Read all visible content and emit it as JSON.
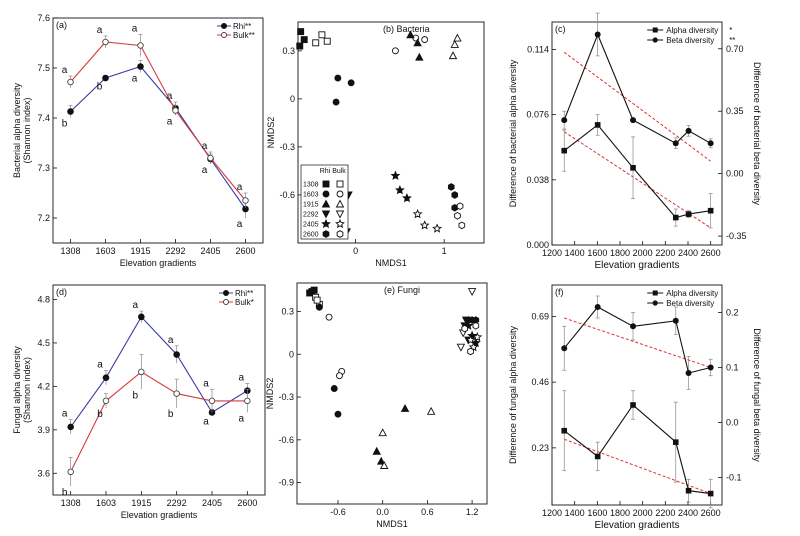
{
  "chart_data": [
    {
      "id": "a",
      "type": "line",
      "panel_label": "(a)",
      "xlabel": "Elevation gradients",
      "ylabel": "Bacterial alpha diversity",
      "ylabel2": "(Shannon index)",
      "categories": [
        "1308",
        "1603",
        "1915",
        "2292",
        "2405",
        "2600"
      ],
      "ylim": [
        7.15,
        7.6
      ],
      "yticks": [
        7.2,
        7.3,
        7.4,
        7.5,
        7.6
      ],
      "legend_position": "top-right",
      "series": [
        {
          "name": "Rhi**",
          "color": "#3a3aa6",
          "marker": "filled-circle",
          "values": [
            7.413,
            7.48,
            7.503,
            7.42,
            7.318,
            7.218
          ],
          "errors": [
            0.012,
            0.005,
            0.012,
            0.012,
            0.01,
            0.018
          ],
          "letters": [
            "b",
            "b",
            "a",
            "a",
            "a",
            "a"
          ]
        },
        {
          "name": "Bulk**",
          "color": "#d63a3a",
          "marker": "open-circle",
          "values": [
            7.472,
            7.552,
            7.545,
            7.415,
            7.32,
            7.235
          ],
          "errors": [
            0.012,
            0.012,
            0.022,
            0.01,
            0.012,
            0.015
          ],
          "letters": [
            "a",
            "a",
            "a",
            "a",
            "a",
            "a"
          ]
        }
      ]
    },
    {
      "id": "b",
      "type": "scatter",
      "panel_label": "(b) Bacteria",
      "xlabel": "NMDS1",
      "ylabel": "NMDS2",
      "xlim": [
        -0.65,
        1.45
      ],
      "ylim": [
        -0.9,
        0.48
      ],
      "xticks": [
        0,
        1
      ],
      "yticks": [
        0.3,
        0,
        -0.3,
        -0.6
      ],
      "legend_title_rhi": "Rhi",
      "legend_title_bulk": "Bulk",
      "legend_position": "bottom-left",
      "groups": [
        {
          "name": "1308",
          "shape": "square",
          "rhi": [
            [
              -0.62,
              0.42
            ],
            [
              -0.63,
              0.33
            ],
            [
              -0.58,
              0.37
            ]
          ],
          "bulk": [
            [
              -0.38,
              0.4
            ],
            [
              -0.32,
              0.36
            ],
            [
              -0.45,
              0.35
            ]
          ]
        },
        {
          "name": "1603",
          "shape": "circle",
          "rhi": [
            [
              -0.2,
              0.13
            ],
            [
              -0.22,
              -0.02
            ],
            [
              -0.05,
              0.1
            ]
          ],
          "bulk": [
            [
              0.45,
              0.3
            ],
            [
              0.68,
              0.38
            ],
            [
              0.78,
              0.37
            ]
          ]
        },
        {
          "name": "1915",
          "shape": "triangle-up",
          "rhi": [
            [
              0.7,
              0.35
            ],
            [
              0.72,
              0.26
            ],
            [
              0.62,
              0.4
            ]
          ],
          "bulk": [
            [
              1.12,
              0.34
            ],
            [
              1.15,
              0.38
            ],
            [
              1.1,
              0.27
            ]
          ]
        },
        {
          "name": "2292",
          "shape": "triangle-down",
          "rhi": [
            [
              -0.08,
              -0.6
            ],
            [
              -0.15,
              -0.63
            ],
            [
              -0.1,
              -0.83
            ]
          ],
          "bulk": [
            [
              -0.28,
              -0.7
            ],
            [
              -0.18,
              -0.82
            ],
            [
              -0.35,
              -0.72
            ]
          ]
        },
        {
          "name": "2405",
          "shape": "star",
          "rhi": [
            [
              0.45,
              -0.48
            ],
            [
              0.5,
              -0.57
            ],
            [
              0.58,
              -0.62
            ]
          ],
          "bulk": [
            [
              0.7,
              -0.72
            ],
            [
              0.78,
              -0.79
            ],
            [
              0.92,
              -0.81
            ]
          ]
        },
        {
          "name": "2600",
          "shape": "hexagon",
          "rhi": [
            [
              1.08,
              -0.55
            ],
            [
              1.12,
              -0.6
            ],
            [
              1.12,
              -0.68
            ]
          ],
          "bulk": [
            [
              1.18,
              -0.67
            ],
            [
              1.2,
              -0.79
            ],
            [
              1.15,
              -0.73
            ]
          ]
        }
      ]
    },
    {
      "id": "c",
      "type": "line",
      "panel_label": "(c)",
      "xlabel": "Elevation gradients",
      "ylabel": "Difference of bacterial alpha diversity",
      "ylabel_right": "Difference of bacterial beta diversity",
      "xlim": [
        1200,
        2700
      ],
      "xticks": [
        1200,
        1400,
        1600,
        1800,
        2000,
        2200,
        2400,
        2600
      ],
      "ylim": [
        0,
        0.13
      ],
      "yticks": [
        0,
        0.038,
        0.076,
        0.114
      ],
      "ytick_labels": [
        "0.000",
        "0.038",
        "0.076",
        "0.114"
      ],
      "ylim_right": [
        -0.4,
        0.85
      ],
      "yticks_right": [
        -0.35,
        0,
        0.35,
        0.7
      ],
      "ytick_labels_right": [
        "-0.35",
        "0.00",
        "0.35",
        "0.70"
      ],
      "legend_position": "top-right",
      "series": [
        {
          "name": "Alpha diversity",
          "legend_suffix": "*",
          "marker": "filled-square",
          "axis": "left",
          "x": [
            1308,
            1603,
            1915,
            2292,
            2405,
            2600
          ],
          "values": [
            0.055,
            0.07,
            0.045,
            0.016,
            0.018,
            0.02
          ],
          "errors": [
            0.012,
            0.006,
            0.018,
            0.005,
            0.002,
            0.01
          ]
        },
        {
          "name": "Beta diversity",
          "legend_suffix": "**",
          "marker": "filled-circle",
          "axis": "right",
          "x": [
            1308,
            1603,
            1915,
            2292,
            2405,
            2600
          ],
          "values": [
            0.3,
            0.78,
            0.3,
            0.17,
            0.24,
            0.17
          ],
          "errors": [
            0.05,
            0.12,
            0.0,
            0.03,
            0.03,
            0.025
          ]
        }
      ],
      "trendlines": [
        {
          "axis": "left",
          "x": [
            1308,
            2600
          ],
          "y": [
            0.066,
            0.01
          ]
        },
        {
          "axis": "right",
          "x": [
            1308,
            2600
          ],
          "y": [
            0.68,
            0.07
          ]
        }
      ]
    },
    {
      "id": "d",
      "type": "line",
      "panel_label": "(d)",
      "xlabel": "Elevation gradients",
      "ylabel": "Fungal alpha diversity",
      "ylabel2": "(Shannon index)",
      "categories": [
        "1308",
        "1603",
        "1915",
        "2292",
        "2405",
        "2600"
      ],
      "ylim": [
        3.45,
        4.9
      ],
      "yticks": [
        3.6,
        3.9,
        4.2,
        4.5,
        4.8
      ],
      "legend_position": "top-right",
      "series": [
        {
          "name": "Rhi**",
          "color": "#3a3aa6",
          "marker": "filled-circle",
          "values": [
            3.92,
            4.26,
            4.68,
            4.42,
            4.02,
            4.17
          ],
          "errors": [
            0.05,
            0.05,
            0.04,
            0.06,
            0.02,
            0.05
          ],
          "letters": [
            "a",
            "a",
            "a",
            "a",
            "a",
            "a"
          ]
        },
        {
          "name": "Bulk*",
          "color": "#d63a3a",
          "marker": "open-circle",
          "values": [
            3.61,
            4.1,
            4.3,
            4.15,
            4.1,
            4.1
          ],
          "errors": [
            0.1,
            0.05,
            0.12,
            0.1,
            0.08,
            0.08
          ],
          "letters": [
            "b",
            "b",
            "b",
            "b",
            "a",
            "a"
          ]
        }
      ]
    },
    {
      "id": "e",
      "type": "scatter",
      "panel_label": "(e) Fungi",
      "xlabel": "NMDS1",
      "ylabel": "NMDS2",
      "xlim": [
        -1.15,
        1.4
      ],
      "ylim": [
        -1.05,
        0.5
      ],
      "xticks": [
        -0.6,
        0.0,
        0.6,
        1.2
      ],
      "xtick_labels": [
        "-0.6",
        "0.0",
        "0.6",
        "1.2"
      ],
      "yticks": [
        0.3,
        0,
        -0.3,
        -0.6,
        -0.9
      ],
      "groups": [
        {
          "name": "1308",
          "shape": "square",
          "rhi": [
            [
              -0.95,
              0.44
            ],
            [
              -0.92,
              0.45
            ],
            [
              -0.98,
              0.43
            ]
          ],
          "bulk": [
            [
              -0.9,
              0.4
            ],
            [
              -0.85,
              0.35
            ],
            [
              -0.88,
              0.38
            ]
          ]
        },
        {
          "name": "1603",
          "shape": "circle",
          "rhi": [
            [
              -0.85,
              0.33
            ],
            [
              -0.65,
              -0.24
            ],
            [
              -0.6,
              -0.42
            ]
          ],
          "bulk": [
            [
              -0.72,
              0.26
            ],
            [
              -0.55,
              -0.12
            ],
            [
              -0.58,
              -0.15
            ]
          ]
        },
        {
          "name": "1915",
          "shape": "triangle-up",
          "rhi": [
            [
              0.3,
              -0.38
            ],
            [
              -0.08,
              -0.68
            ],
            [
              -0.02,
              -0.75
            ]
          ],
          "bulk": [
            [
              0.0,
              -0.55
            ],
            [
              0.02,
              -0.78
            ],
            [
              0.65,
              -0.4
            ]
          ]
        },
        {
          "name": "2292",
          "shape": "triangle-down",
          "rhi": [
            [
              1.12,
              0.24
            ],
            [
              1.1,
              0.2
            ],
            [
              1.15,
              0.1
            ]
          ],
          "bulk": [
            [
              1.2,
              0.44
            ],
            [
              1.08,
              0.15
            ],
            [
              1.05,
              0.05
            ]
          ]
        },
        {
          "name": "2405",
          "shape": "star",
          "rhi": [
            [
              1.15,
              0.2
            ],
            [
              1.2,
              0.13
            ],
            [
              1.25,
              0.08
            ]
          ],
          "bulk": [
            [
              1.22,
              0.05
            ],
            [
              1.18,
              0.1
            ],
            [
              1.27,
              0.12
            ]
          ]
        },
        {
          "name": "2600",
          "shape": "hexagon",
          "rhi": [
            [
              1.2,
              0.24
            ],
            [
              1.25,
              0.24
            ],
            [
              1.15,
              0.24
            ]
          ],
          "bulk": [
            [
              1.1,
              0.18
            ],
            [
              1.25,
              0.2
            ],
            [
              1.18,
              0.02
            ]
          ]
        }
      ]
    },
    {
      "id": "f",
      "type": "line",
      "panel_label": "(f)",
      "xlabel": "Elevation gradients",
      "ylabel": "Difference of fungal alpha diversity",
      "ylabel_right": "Difference of fungal beta diversity",
      "xlim": [
        1200,
        2700
      ],
      "xticks": [
        1200,
        1400,
        1600,
        1800,
        2000,
        2200,
        2400,
        2600
      ],
      "ylim": [
        0.03,
        0.8
      ],
      "yticks": [
        0.23,
        0.46,
        0.69
      ],
      "ytick_labels": [
        "0.23",
        "0.46",
        "0.69"
      ],
      "ylim_right": [
        -0.15,
        0.25
      ],
      "yticks_right": [
        -0.1,
        0.0,
        0.1,
        0.2
      ],
      "ytick_labels_right": [
        "-0.1",
        "0.0",
        "0.1",
        "0.2"
      ],
      "legend_position": "top-right",
      "series": [
        {
          "name": "Alpha diversity",
          "legend_suffix": "",
          "marker": "filled-square",
          "axis": "left",
          "x": [
            1308,
            1603,
            1915,
            2292,
            2405,
            2600
          ],
          "values": [
            0.29,
            0.2,
            0.38,
            0.25,
            0.08,
            0.07
          ],
          "errors": [
            0.14,
            0.05,
            0.05,
            0.14,
            0.04,
            0.05
          ]
        },
        {
          "name": "Beta diversity",
          "legend_suffix": "",
          "marker": "filled-circle",
          "axis": "right",
          "x": [
            1308,
            1603,
            1915,
            2292,
            2405,
            2600
          ],
          "values": [
            0.135,
            0.21,
            0.175,
            0.185,
            0.09,
            0.1
          ],
          "errors": [
            0.04,
            0.02,
            0.025,
            0.025,
            0.03,
            0.015
          ]
        }
      ],
      "trendlines": [
        {
          "axis": "left",
          "x": [
            1308,
            2600
          ],
          "y": [
            0.26,
            0.07
          ]
        },
        {
          "axis": "right",
          "x": [
            1308,
            2600
          ],
          "y": [
            0.19,
            0.1
          ]
        }
      ]
    }
  ]
}
